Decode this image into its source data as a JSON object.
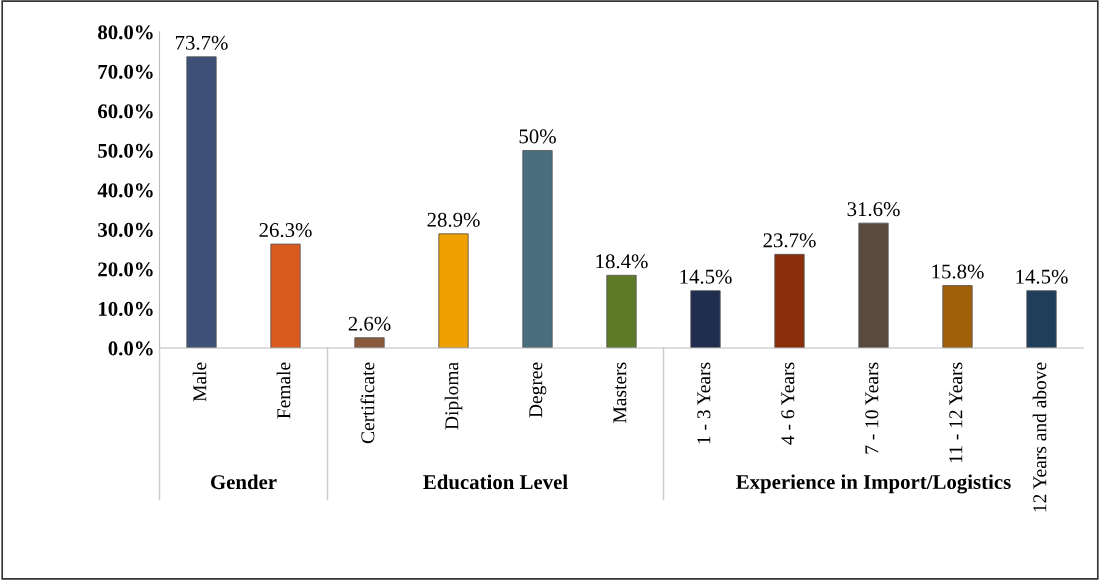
{
  "chart_data": {
    "type": "bar",
    "categories": [
      "Male",
      "Female",
      "Certificate",
      "Diploma",
      "Degree",
      "Masters",
      "1 - 3 Years",
      "4 - 6 Years",
      "7 - 10 Years",
      "11 - 12 Years",
      "12 Years and above"
    ],
    "values": [
      73.7,
      26.3,
      2.6,
      28.9,
      50,
      18.4,
      14.5,
      23.7,
      31.6,
      15.8,
      14.5
    ],
    "colors": [
      "#3f5078",
      "#d95b1e",
      "#8a5a3a",
      "#f0a000",
      "#4a6e7e",
      "#5e7a28",
      "#1f2d4e",
      "#8a2e0a",
      "#5a4a3e",
      "#a0600a",
      "#1e3e5a"
    ],
    "value_labels": [
      "73.7%",
      "26.3%",
      "2.6%",
      "28.9%",
      "50%",
      "18.4%",
      "14.5%",
      "23.7%",
      "31.6%",
      "15.8%",
      "14.5%"
    ],
    "ylim": [
      0,
      80
    ],
    "yticks": [
      {
        "value": 0,
        "label": "0.0%"
      },
      {
        "value": 10,
        "label": "10.0%"
      },
      {
        "value": 20,
        "label": "20.0%"
      },
      {
        "value": 30,
        "label": "30.0%"
      },
      {
        "value": 40,
        "label": "40.0%"
      },
      {
        "value": 50,
        "label": "50.0%"
      },
      {
        "value": 60,
        "label": "60.0%"
      },
      {
        "value": 70,
        "label": "70.0%"
      },
      {
        "value": 80,
        "label": "80.0%"
      }
    ],
    "annotations": [
      "Gender",
      "Education Level",
      "Experience in Import/Logistics"
    ],
    "grid": false
  }
}
